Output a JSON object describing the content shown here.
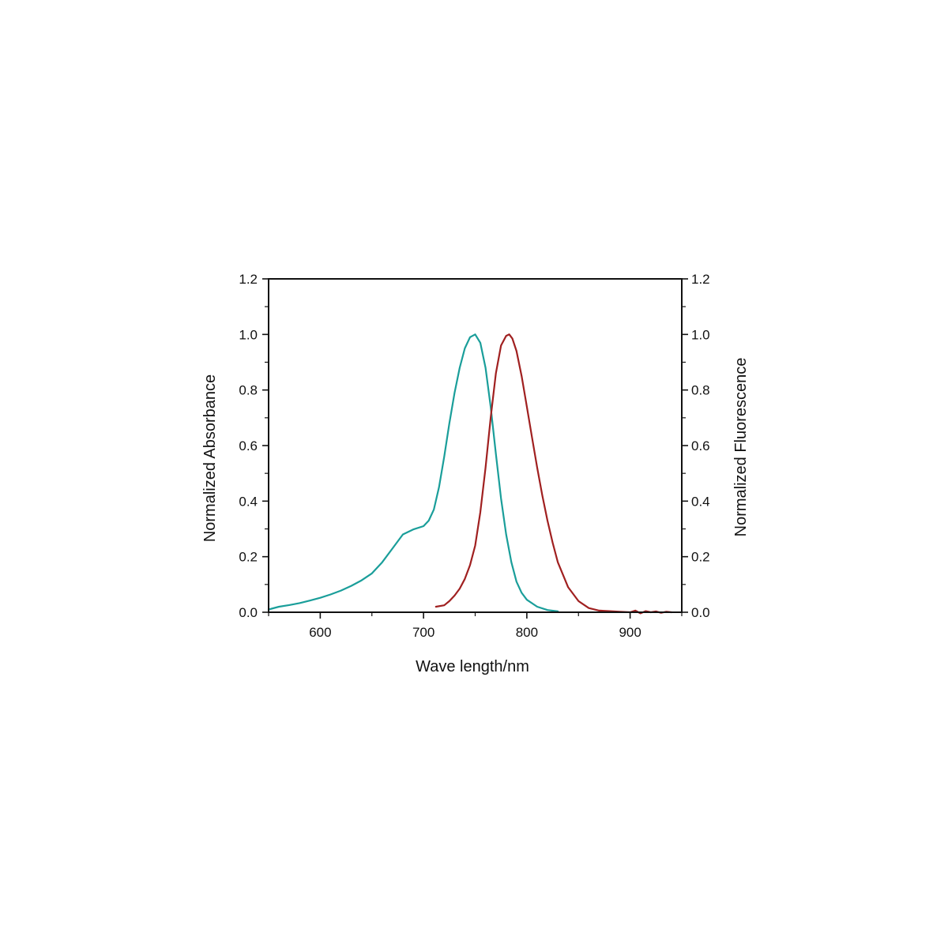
{
  "chart_data": {
    "type": "line",
    "xlabel": "Wave length/nm",
    "ylabel_left": "Normalized Absorbance",
    "ylabel_right": "Normalized Fluorescence",
    "xlim": [
      550,
      950
    ],
    "ylim": [
      0,
      1.2
    ],
    "x_ticks": [
      600,
      700,
      800,
      900
    ],
    "x_tick_labels": [
      "600",
      "700",
      "800",
      "900"
    ],
    "y_ticks": [
      0,
      0.2,
      0.4,
      0.6,
      0.8,
      1.0,
      1.2
    ],
    "y_tick_labels": [
      "0.0",
      "0.2",
      "0.4",
      "0.6",
      "0.8",
      "1.0",
      "1.2"
    ],
    "grid": false,
    "series": [
      {
        "color": "#1a9e9a",
        "x": [
          550,
          560,
          570,
          580,
          590,
          600,
          610,
          620,
          630,
          640,
          650,
          660,
          670,
          680,
          690,
          700,
          705,
          710,
          715,
          720,
          725,
          730,
          735,
          740,
          745,
          750,
          755,
          760,
          765,
          770,
          775,
          780,
          785,
          790,
          795,
          800,
          810,
          820,
          830
        ],
        "y": [
          0.01,
          0.02,
          0.026,
          0.033,
          0.042,
          0.052,
          0.064,
          0.078,
          0.095,
          0.115,
          0.14,
          0.18,
          0.23,
          0.28,
          0.298,
          0.31,
          0.33,
          0.37,
          0.45,
          0.56,
          0.68,
          0.79,
          0.88,
          0.95,
          0.99,
          1.0,
          0.97,
          0.88,
          0.74,
          0.57,
          0.41,
          0.28,
          0.18,
          0.11,
          0.07,
          0.045,
          0.02,
          0.008,
          0.003
        ]
      },
      {
        "color": "#a02020",
        "x": [
          712,
          720,
          725,
          730,
          735,
          740,
          745,
          750,
          755,
          760,
          765,
          770,
          775,
          780,
          783,
          786,
          790,
          795,
          800,
          805,
          810,
          815,
          820,
          825,
          830,
          840,
          850,
          860,
          870,
          880,
          890,
          900,
          905,
          910,
          915,
          920,
          925,
          930,
          935,
          940
        ],
        "y": [
          0.02,
          0.025,
          0.04,
          0.06,
          0.085,
          0.12,
          0.17,
          0.24,
          0.36,
          0.52,
          0.7,
          0.86,
          0.96,
          0.995,
          1.0,
          0.985,
          0.94,
          0.85,
          0.74,
          0.63,
          0.52,
          0.42,
          0.33,
          0.25,
          0.18,
          0.09,
          0.04,
          0.015,
          0.006,
          0.004,
          0.002,
          0.0,
          0.006,
          -0.004,
          0.004,
          0.0,
          0.003,
          -0.002,
          0.002,
          0.0
        ]
      }
    ]
  }
}
